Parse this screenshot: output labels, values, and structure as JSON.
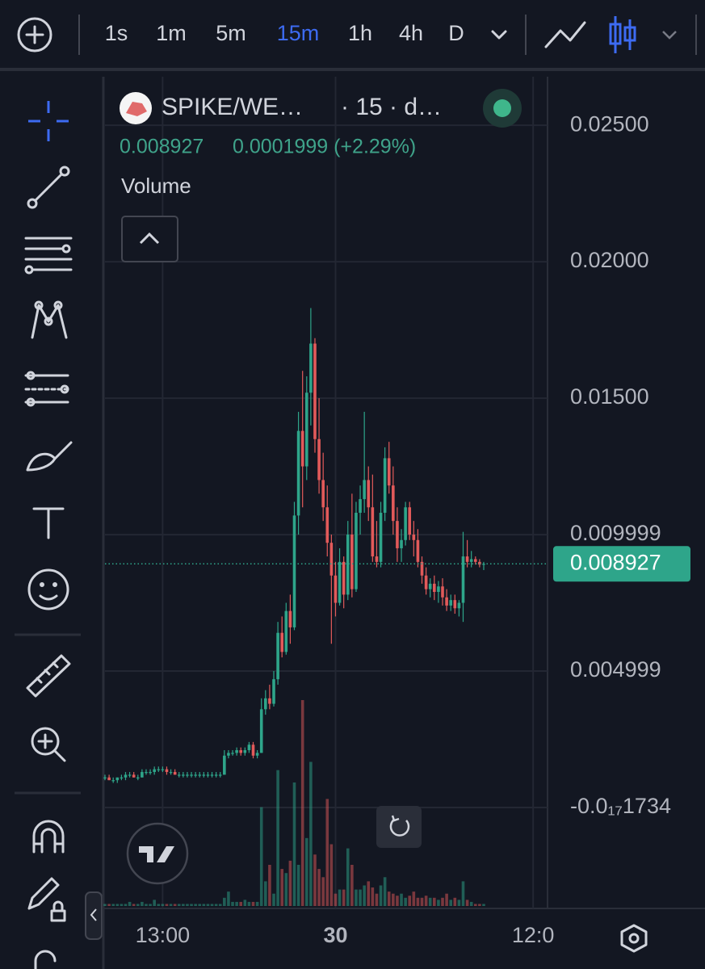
{
  "toolbar": {
    "intervals": [
      "1s",
      "1m",
      "5m",
      "15m",
      "1h",
      "4h",
      "D"
    ],
    "active_interval": 3
  },
  "legend": {
    "symbol": "SPIKE/WE…",
    "interval": "· 15 · d…",
    "change": "0.0001999 (+2.29%)",
    "indicator": "Volume"
  },
  "chart_data": {
    "type": "candlestick",
    "up_color": "#2ea58a",
    "down_color": "#e25a5a",
    "ylim": [
      -0.0037,
      0.02678
    ],
    "yticks": [
      {
        "value": 0.025,
        "label": "0.02500"
      },
      {
        "value": 0.02,
        "label": "0.02000"
      },
      {
        "value": 0.015,
        "label": "0.01500"
      },
      0.009999,
      0.004999,
      {
        "value": -1.734e-18,
        "label": "-0.0₁₇1734"
      }
    ],
    "xlim": [
      0,
      107.5
    ],
    "xticks": [
      {
        "value": 14,
        "label": "13:00"
      },
      {
        "value": 56,
        "label": "30"
      },
      {
        "value": 104,
        "label": "12:0"
      }
    ],
    "grid": true,
    "last_price": 0.008927,
    "ohlc": [
      [
        0.0011,
        0.0012,
        0.001,
        0.0011
      ],
      [
        0.0011,
        0.0012,
        0.001,
        0.001
      ],
      [
        0.001,
        0.0011,
        0.0009,
        0.001
      ],
      [
        0.001,
        0.0011,
        0.0009,
        0.0011
      ],
      [
        0.0011,
        0.0012,
        0.001,
        0.0011
      ],
      [
        0.0011,
        0.0013,
        0.001,
        0.0012
      ],
      [
        0.0012,
        0.0013,
        0.0011,
        0.0012
      ],
      [
        0.0012,
        0.0013,
        0.0011,
        0.0011
      ],
      [
        0.0011,
        0.0012,
        0.001,
        0.0011
      ],
      [
        0.0011,
        0.0014,
        0.0011,
        0.0013
      ],
      [
        0.0013,
        0.0014,
        0.0012,
        0.0013
      ],
      [
        0.0013,
        0.0014,
        0.0012,
        0.0013
      ],
      [
        0.0013,
        0.0015,
        0.0012,
        0.0014
      ],
      [
        0.0014,
        0.0015,
        0.0013,
        0.0014
      ],
      [
        0.0014,
        0.0015,
        0.0013,
        0.0014
      ],
      [
        0.0014,
        0.0015,
        0.0012,
        0.0013
      ],
      [
        0.0013,
        0.0014,
        0.0012,
        0.0013
      ],
      [
        0.0013,
        0.0014,
        0.0012,
        0.0012
      ],
      [
        0.0012,
        0.0013,
        0.0011,
        0.0012
      ],
      [
        0.0012,
        0.0013,
        0.0011,
        0.0012
      ],
      [
        0.0012,
        0.0013,
        0.0011,
        0.0012
      ],
      [
        0.0012,
        0.0013,
        0.0011,
        0.0012
      ],
      [
        0.0012,
        0.0013,
        0.0011,
        0.0012
      ],
      [
        0.0012,
        0.0013,
        0.0011,
        0.0012
      ],
      [
        0.0012,
        0.0013,
        0.0011,
        0.0012
      ],
      [
        0.0012,
        0.0013,
        0.0011,
        0.0012
      ],
      [
        0.0012,
        0.0013,
        0.0011,
        0.0012
      ],
      [
        0.0012,
        0.0013,
        0.0011,
        0.0012
      ],
      [
        0.0012,
        0.0013,
        0.0011,
        0.0012
      ],
      [
        0.0012,
        0.0021,
        0.0012,
        0.0019
      ],
      [
        0.0019,
        0.0021,
        0.0018,
        0.002
      ],
      [
        0.002,
        0.0021,
        0.0019,
        0.002
      ],
      [
        0.002,
        0.0022,
        0.0019,
        0.0021
      ],
      [
        0.0021,
        0.0022,
        0.0019,
        0.002
      ],
      [
        0.002,
        0.0022,
        0.0019,
        0.0021
      ],
      [
        0.0021,
        0.0024,
        0.002,
        0.0023
      ],
      [
        0.0023,
        0.0024,
        0.0018,
        0.0019
      ],
      [
        0.0019,
        0.0021,
        0.0018,
        0.002
      ],
      [
        0.002,
        0.004,
        0.002,
        0.0036
      ],
      [
        0.0036,
        0.0043,
        0.0034,
        0.004
      ],
      [
        0.004,
        0.0045,
        0.0036,
        0.0038
      ],
      [
        0.0038,
        0.005,
        0.0037,
        0.0047
      ],
      [
        0.0047,
        0.0068,
        0.0045,
        0.0064
      ],
      [
        0.0064,
        0.007,
        0.0055,
        0.0057
      ],
      [
        0.0057,
        0.0075,
        0.0056,
        0.0072
      ],
      [
        0.0072,
        0.0078,
        0.006,
        0.0066
      ],
      [
        0.0066,
        0.0112,
        0.0065,
        0.0107
      ],
      [
        0.0107,
        0.0145,
        0.01,
        0.0138
      ],
      [
        0.0138,
        0.016,
        0.011,
        0.0125
      ],
      [
        0.0125,
        0.0158,
        0.012,
        0.0152
      ],
      [
        0.0152,
        0.0183,
        0.014,
        0.017
      ],
      [
        0.017,
        0.0172,
        0.013,
        0.0135
      ],
      [
        0.0135,
        0.015,
        0.0115,
        0.012
      ],
      [
        0.012,
        0.013,
        0.0105,
        0.011
      ],
      [
        0.011,
        0.0118,
        0.0092,
        0.0097
      ],
      [
        0.0097,
        0.01,
        0.006,
        0.0085
      ],
      [
        0.0085,
        0.009,
        0.007,
        0.0075
      ],
      [
        0.0075,
        0.0095,
        0.0074,
        0.009
      ],
      [
        0.009,
        0.0092,
        0.0073,
        0.0078
      ],
      [
        0.0078,
        0.0105,
        0.0076,
        0.01
      ],
      [
        0.01,
        0.0115,
        0.0077,
        0.008
      ],
      [
        0.008,
        0.0112,
        0.0079,
        0.0108
      ],
      [
        0.0108,
        0.0118,
        0.01,
        0.0113
      ],
      [
        0.0113,
        0.0145,
        0.0108,
        0.012
      ],
      [
        0.012,
        0.0125,
        0.0105,
        0.011
      ],
      [
        0.011,
        0.0122,
        0.009,
        0.0092
      ],
      [
        0.0092,
        0.0105,
        0.0088,
        0.009
      ],
      [
        0.009,
        0.0112,
        0.0088,
        0.0108
      ],
      [
        0.0108,
        0.0132,
        0.0105,
        0.0128
      ],
      [
        0.0128,
        0.0134,
        0.0115,
        0.0118
      ],
      [
        0.0118,
        0.0125,
        0.01,
        0.0105
      ],
      [
        0.0105,
        0.011,
        0.009,
        0.0095
      ],
      [
        0.0095,
        0.0102,
        0.009,
        0.0098
      ],
      [
        0.0098,
        0.0112,
        0.0096,
        0.011
      ],
      [
        0.011,
        0.0112,
        0.0098,
        0.01
      ],
      [
        0.01,
        0.0105,
        0.0092,
        0.0098
      ],
      [
        0.0098,
        0.0102,
        0.0088,
        0.009
      ],
      [
        0.009,
        0.0092,
        0.0082,
        0.0085
      ],
      [
        0.0085,
        0.0088,
        0.0078,
        0.008
      ],
      [
        0.008,
        0.0084,
        0.0077,
        0.0082
      ],
      [
        0.0082,
        0.0085,
        0.0076,
        0.0079
      ],
      [
        0.0079,
        0.0083,
        0.0075,
        0.0081
      ],
      [
        0.0081,
        0.0084,
        0.0074,
        0.0077
      ],
      [
        0.0077,
        0.008,
        0.0072,
        0.0074
      ],
      [
        0.0074,
        0.0078,
        0.0072,
        0.0076
      ],
      [
        0.0076,
        0.0078,
        0.0071,
        0.0073
      ],
      [
        0.0073,
        0.0076,
        0.007,
        0.0075
      ],
      [
        0.0075,
        0.0101,
        0.0068,
        0.0092
      ],
      [
        0.0092,
        0.0098,
        0.0088,
        0.009
      ],
      [
        0.009,
        0.0094,
        0.0088,
        0.0091
      ],
      [
        0.0091,
        0.0092,
        0.0089,
        0.009
      ],
      [
        0.009,
        0.0091,
        0.0088,
        0.0089
      ],
      [
        0.0089,
        0.009,
        0.0087,
        0.00893
      ]
    ],
    "volume": [
      1,
      1,
      1,
      1,
      1,
      1,
      2,
      1,
      1,
      2,
      1,
      1,
      3,
      1,
      1,
      1,
      1,
      1,
      1,
      1,
      1,
      1,
      1,
      1,
      1,
      1,
      1,
      1,
      1,
      4,
      7,
      2,
      2,
      2,
      3,
      2,
      2,
      2,
      48,
      12,
      20,
      6,
      66,
      18,
      16,
      22,
      60,
      20,
      100,
      33,
      70,
      25,
      18,
      14,
      52,
      30,
      6,
      8,
      8,
      28,
      20,
      8,
      8,
      10,
      12,
      9,
      6,
      10,
      14,
      7,
      6,
      5,
      6,
      4,
      5,
      7,
      4,
      4,
      5,
      4,
      4,
      3,
      4,
      6,
      3,
      4,
      3,
      12,
      3,
      2,
      1,
      1,
      1
    ]
  }
}
